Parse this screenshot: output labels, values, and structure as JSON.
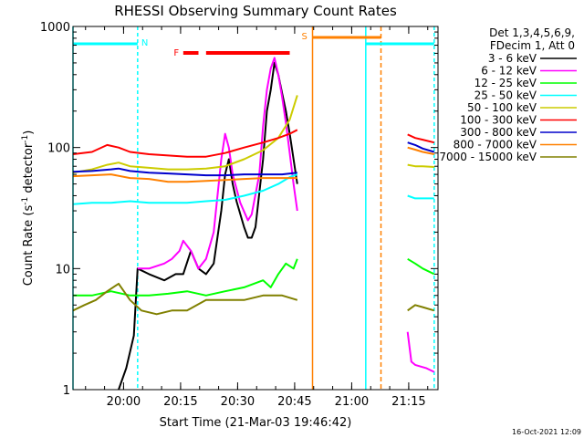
{
  "chart_data": {
    "type": "line",
    "title": "RHESSI Observing Summary Count Rates",
    "xlabel": "Start Time (21-Mar-03 19:46:42)",
    "ylabel_main": "Count Rate (s",
    "ylabel_sup1": "-1",
    "ylabel_mid": " detector",
    "ylabel_sup2": "-1",
    "ylabel_end": ")",
    "y_scale": "log",
    "ylim": [
      1,
      1000
    ],
    "xlim_minutes": [
      0,
      96
    ],
    "x_ticks": [
      {
        "t": 13.3,
        "label": "20:00"
      },
      {
        "t": 28.3,
        "label": "20:15"
      },
      {
        "t": 43.3,
        "label": "20:30"
      },
      {
        "t": 58.3,
        "label": "20:45"
      },
      {
        "t": 73.3,
        "label": "21:00"
      },
      {
        "t": 88.3,
        "label": "21:15"
      }
    ],
    "y_ticks": [
      {
        "v": 1,
        "label": "1"
      },
      {
        "v": 10,
        "label": "10"
      },
      {
        "v": 100,
        "label": "100"
      },
      {
        "v": 1000,
        "label": "1000"
      }
    ],
    "legend_header": [
      "Det 1,3,4,5,6,9,",
      "FDecim 1, Att 0"
    ],
    "series": [
      {
        "name": "3 - 6 keV",
        "color": "#000000",
        "segments": [
          [
            [
              12,
              1.0
            ],
            [
              14,
              1.5
            ],
            [
              16,
              2.8
            ],
            [
              17,
              10
            ],
            [
              20,
              9
            ],
            [
              24,
              8
            ],
            [
              27,
              9
            ],
            [
              29,
              9
            ],
            [
              31,
              14
            ],
            [
              33,
              10
            ],
            [
              35,
              9
            ],
            [
              37,
              11
            ],
            [
              39,
              30
            ],
            [
              40,
              60
            ],
            [
              41,
              80
            ],
            [
              42,
              50
            ],
            [
              43,
              36
            ],
            [
              45,
              22
            ],
            [
              46,
              18
            ],
            [
              47,
              18
            ],
            [
              48,
              22
            ],
            [
              50,
              80
            ],
            [
              51,
              200
            ],
            [
              52,
              300
            ],
            [
              53,
              500
            ],
            [
              54,
              400
            ],
            [
              55,
              280
            ],
            [
              56,
              200
            ],
            [
              57,
              130
            ],
            [
              58,
              80
            ],
            [
              59,
              50
            ]
          ]
        ]
      },
      {
        "name": "6 - 12 keV",
        "color": "#ff00ff",
        "segments": [
          [
            [
              17,
              10
            ],
            [
              20,
              10
            ],
            [
              24,
              11
            ],
            [
              26,
              12
            ],
            [
              28,
              14
            ],
            [
              29,
              17
            ],
            [
              31,
              14
            ],
            [
              33,
              10
            ],
            [
              35,
              12
            ],
            [
              37,
              20
            ],
            [
              39,
              80
            ],
            [
              40,
              130
            ],
            [
              41,
              100
            ],
            [
              42,
              60
            ],
            [
              44,
              35
            ],
            [
              46,
              25
            ],
            [
              47,
              28
            ],
            [
              49,
              60
            ],
            [
              50,
              150
            ],
            [
              51,
              300
            ],
            [
              52,
              450
            ],
            [
              53,
              550
            ],
            [
              54,
              400
            ],
            [
              55,
              260
            ],
            [
              56,
              160
            ],
            [
              57,
              90
            ],
            [
              58,
              50
            ],
            [
              59,
              30
            ]
          ],
          [
            [
              88,
              3
            ],
            [
              89,
              1.7
            ],
            [
              90,
              1.6
            ],
            [
              93,
              1.5
            ],
            [
              95,
              1.4
            ]
          ]
        ]
      },
      {
        "name": "12 - 25 keV",
        "color": "#00ff00",
        "segments": [
          [
            [
              0,
              6
            ],
            [
              5,
              6
            ],
            [
              10,
              6.5
            ],
            [
              15,
              6
            ],
            [
              20,
              6
            ],
            [
              25,
              6.2
            ],
            [
              30,
              6.5
            ],
            [
              35,
              6
            ],
            [
              40,
              6.5
            ],
            [
              45,
              7
            ],
            [
              50,
              8
            ],
            [
              52,
              7
            ],
            [
              54,
              9
            ],
            [
              56,
              11
            ],
            [
              58,
              10
            ],
            [
              59,
              12
            ]
          ],
          [
            [
              88,
              12
            ],
            [
              90,
              11
            ],
            [
              92,
              10
            ],
            [
              95,
              9
            ]
          ]
        ]
      },
      {
        "name": "25 - 50 keV",
        "color": "#00ffff",
        "segments": [
          [
            [
              0,
              34
            ],
            [
              5,
              35
            ],
            [
              10,
              35
            ],
            [
              15,
              36
            ],
            [
              20,
              35
            ],
            [
              25,
              35
            ],
            [
              30,
              35
            ],
            [
              35,
              36
            ],
            [
              40,
              37
            ],
            [
              45,
              40
            ],
            [
              50,
              44
            ],
            [
              54,
              50
            ],
            [
              57,
              57
            ],
            [
              59,
              60
            ]
          ],
          [
            [
              88,
              40
            ],
            [
              90,
              38
            ],
            [
              92,
              38
            ],
            [
              95,
              38
            ]
          ]
        ]
      },
      {
        "name": "50 - 100 keV",
        "color": "#cccc00",
        "segments": [
          [
            [
              0,
              62
            ],
            [
              5,
              66
            ],
            [
              9,
              72
            ],
            [
              12,
              75
            ],
            [
              15,
              70
            ],
            [
              20,
              68
            ],
            [
              25,
              66
            ],
            [
              30,
              66
            ],
            [
              35,
              67
            ],
            [
              40,
              70
            ],
            [
              45,
              80
            ],
            [
              50,
              95
            ],
            [
              54,
              120
            ],
            [
              57,
              170
            ],
            [
              59,
              270
            ]
          ],
          [
            [
              88,
              72
            ],
            [
              90,
              70
            ],
            [
              92,
              70
            ],
            [
              95,
              69
            ]
          ]
        ]
      },
      {
        "name": "100 - 300 keV",
        "color": "#ff0000",
        "segments": [
          [
            [
              0,
              88
            ],
            [
              5,
              92
            ],
            [
              9,
              105
            ],
            [
              12,
              100
            ],
            [
              15,
              92
            ],
            [
              20,
              88
            ],
            [
              25,
              86
            ],
            [
              30,
              84
            ],
            [
              35,
              84
            ],
            [
              40,
              90
            ],
            [
              45,
              100
            ],
            [
              50,
              110
            ],
            [
              54,
              120
            ],
            [
              57,
              130
            ],
            [
              59,
              140
            ]
          ],
          [
            [
              88,
              128
            ],
            [
              90,
              120
            ],
            [
              92,
              116
            ],
            [
              95,
              110
            ]
          ]
        ]
      },
      {
        "name": "300 - 800 keV",
        "color": "#0000cc",
        "segments": [
          [
            [
              0,
              63
            ],
            [
              5,
              64
            ],
            [
              10,
              66
            ],
            [
              12,
              67
            ],
            [
              15,
              64
            ],
            [
              20,
              62
            ],
            [
              25,
              61
            ],
            [
              30,
              60
            ],
            [
              35,
              59
            ],
            [
              40,
              59
            ],
            [
              45,
              60
            ],
            [
              50,
              60
            ],
            [
              55,
              60
            ],
            [
              59,
              62
            ]
          ],
          [
            [
              88,
              110
            ],
            [
              90,
              105
            ],
            [
              92,
              98
            ],
            [
              95,
              92
            ]
          ]
        ]
      },
      {
        "name": "800 - 7000 keV",
        "color": "#ff8000",
        "segments": [
          [
            [
              0,
              58
            ],
            [
              5,
              59
            ],
            [
              10,
              60
            ],
            [
              15,
              56
            ],
            [
              20,
              55
            ],
            [
              25,
              52
            ],
            [
              30,
              52
            ],
            [
              35,
              53
            ],
            [
              40,
              54
            ],
            [
              45,
              55
            ],
            [
              50,
              56
            ],
            [
              55,
              56
            ],
            [
              59,
              56
            ]
          ],
          [
            [
              88,
              100
            ],
            [
              90,
              96
            ],
            [
              92,
              92
            ],
            [
              95,
              88
            ]
          ]
        ]
      },
      {
        "name": "7000 - 15000 keV",
        "color": "#808000",
        "segments": [
          [
            [
              0,
              4.5
            ],
            [
              3,
              5
            ],
            [
              6,
              5.5
            ],
            [
              9,
              6.5
            ],
            [
              12,
              7.5
            ],
            [
              15,
              5.5
            ],
            [
              18,
              4.5
            ],
            [
              22,
              4.2
            ],
            [
              26,
              4.5
            ],
            [
              30,
              4.5
            ],
            [
              35,
              5.5
            ],
            [
              40,
              5.5
            ],
            [
              45,
              5.5
            ],
            [
              50,
              6.0
            ],
            [
              55,
              6
            ],
            [
              59,
              5.5
            ]
          ],
          [
            [
              88,
              4.5
            ],
            [
              90,
              5
            ],
            [
              92,
              4.8
            ],
            [
              95,
              4.5
            ]
          ]
        ]
      }
    ],
    "markers": {
      "night_start_line_t": 0,
      "night_label_t": 2,
      "N_label": "N",
      "N_t": 17,
      "saa_label": "S",
      "F_label": "F",
      "cyan_lines_t": [
        0,
        17,
        77,
        95
      ],
      "orange_lines_t": [
        63,
        81
      ]
    }
  },
  "footer": {
    "timestamp": "16-Oct-2021 12:09"
  }
}
